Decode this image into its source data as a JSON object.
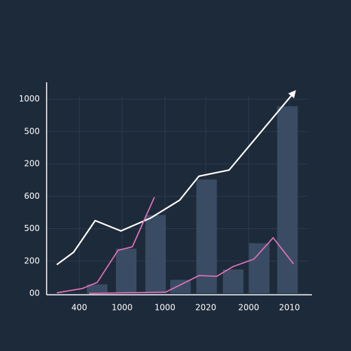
{
  "chart_data": {
    "type": "line",
    "xlim": [
      0,
      6.5
    ],
    "ylim": [
      0,
      6.5
    ],
    "xticks": [
      {
        "value": 0.8,
        "label": "400"
      },
      {
        "value": 1.85,
        "label": "1000"
      },
      {
        "value": 2.9,
        "label": "1000"
      },
      {
        "value": 3.9,
        "label": "2020"
      },
      {
        "value": 4.95,
        "label": "2000"
      },
      {
        "value": 5.95,
        "label": "2010"
      }
    ],
    "yticks": [
      {
        "value": 0,
        "label": "00"
      },
      {
        "value": 1,
        "label": "200"
      },
      {
        "value": 2,
        "label": "500"
      },
      {
        "value": 3,
        "label": "600"
      },
      {
        "value": 4,
        "label": "200"
      },
      {
        "value": 5,
        "label": "500"
      },
      {
        "value": 6,
        "label": "1000"
      }
    ],
    "grid": true,
    "bars": {
      "color": "#3d5068",
      "x": [
        1.24,
        1.95,
        2.67,
        3.28,
        3.92,
        4.57,
        5.21,
        5.9
      ],
      "values": [
        0.28,
        1.38,
        2.42,
        0.42,
        3.52,
        0.74,
        1.55,
        5.78
      ]
    },
    "series": [
      {
        "color": "#ffffff",
        "x": [
          0.25,
          0.66,
          1.19,
          1.82,
          2.55,
          3.26,
          3.73,
          4.47,
          6.05
        ],
        "values": [
          0.89,
          1.27,
          2.25,
          1.93,
          2.33,
          2.88,
          3.62,
          3.81,
          6.19
        ]
      },
      {
        "color": "#e070b8",
        "x": [
          0.25,
          0.87,
          1.24,
          1.75,
          2.1,
          2.64
        ],
        "values": [
          0.02,
          0.15,
          0.34,
          1.33,
          1.44,
          2.97
        ]
      },
      {
        "color": "#e070b8",
        "x": [
          1.04,
          2.92,
          3.73,
          4.17,
          4.57,
          5.08,
          5.55,
          6.05
        ],
        "values": [
          0,
          0.04,
          0.55,
          0.53,
          0.83,
          1.06,
          1.72,
          0.91
        ]
      }
    ]
  }
}
